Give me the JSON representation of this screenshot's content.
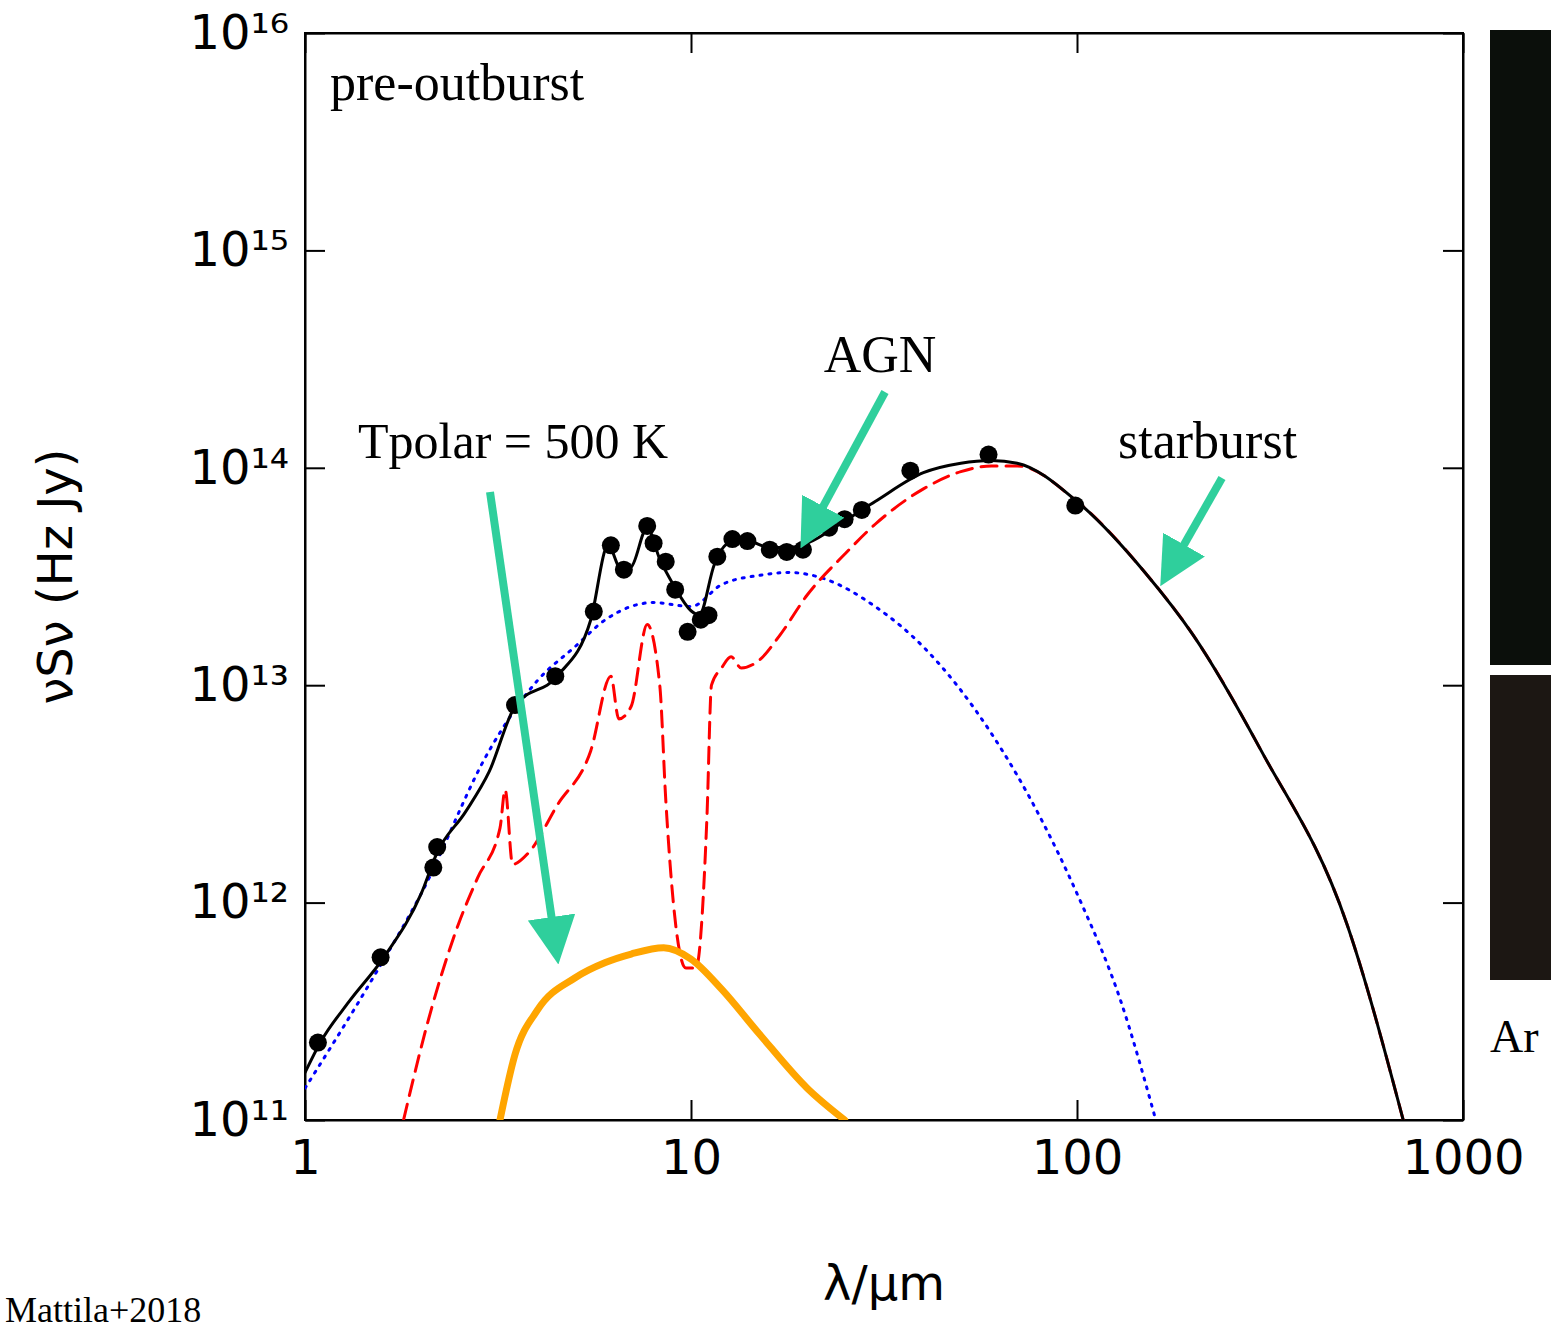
{
  "chart_data": {
    "type": "line",
    "log": true,
    "x_label": "λ/μm",
    "y_label": "νSν (Hz Jy)",
    "xlim": [
      1,
      1000
    ],
    "ylim": [
      100000000000.0,
      1e+16
    ],
    "xticks": [
      1,
      10,
      100,
      1000
    ],
    "yticks": [
      {
        "value": 100000000000.0,
        "label": "10¹¹"
      },
      {
        "value": 1000000000000.0,
        "label": "10¹²"
      },
      {
        "value": 10000000000000.0,
        "label": "10¹³"
      },
      {
        "value": 100000000000000.0,
        "label": "10¹⁴"
      },
      {
        "value": 1000000000000000.0,
        "label": "10¹⁵"
      },
      {
        "value": 1e+16,
        "label": "10¹⁶"
      }
    ],
    "annotations": [
      {
        "text": "pre-outburst"
      },
      {
        "text": "Mattila+2018"
      },
      {
        "text": "Ar"
      }
    ],
    "series": [
      {
        "type": "scatter",
        "marker": "circle",
        "color": "#000000",
        "x": [
          1.08,
          1.57,
          2.15,
          2.2,
          3.5,
          4.45,
          5.6,
          6.2,
          6.7,
          7.7,
          8.0,
          8.6,
          9.1,
          9.8,
          10.6,
          11.1,
          11.7,
          12.8,
          14,
          16,
          17.7,
          19.5,
          22.8,
          25,
          27.7,
          37,
          59,
          99
        ],
        "values": [
          227000000000.0,
          560000000000.0,
          1450000000000.0,
          1800000000000.0,
          8100000000000.0,
          11000000000000.0,
          21800000000000.0,
          44000000000000.0,
          34000000000000.0,
          54000000000000.0,
          45000000000000.0,
          37000000000000.0,
          27500000000000.0,
          17600000000000.0,
          20000000000000.0,
          21000000000000.0,
          39000000000000.0,
          47000000000000.0,
          46000000000000.0,
          42000000000000.0,
          41000000000000.0,
          42000000000000.0,
          53000000000000.0,
          58000000000000.0,
          64000000000000.0,
          97000000000000.0,
          115000000000000.0,
          67000000000000.0
        ]
      },
      {
        "type": "line",
        "line_style": "solid",
        "color": "#000000",
        "x": [
          1,
          1.1,
          1.3,
          1.6,
          2,
          2.2,
          2.6,
          3,
          3.5,
          4.5,
          5.5,
          6.1,
          6.6,
          7,
          7.7,
          8.3,
          9,
          10,
          10.5,
          11.5,
          12.5,
          14,
          16,
          18,
          20,
          25,
          30,
          40,
          50,
          60,
          70,
          100,
          150,
          200,
          300,
          500,
          700
        ],
        "values": [
          165000000000.0,
          230000000000.0,
          350000000000.0,
          560000000000.0,
          1100000000000.0,
          1700000000000.0,
          2600000000000.0,
          4000000000000.0,
          8000000000000.0,
          11000000000000.0,
          20000000000000.0,
          44000000000000.0,
          34000000000000.0,
          35000000000000.0,
          53000000000000.0,
          38000000000000.0,
          29000000000000.0,
          22000000000000.0,
          21000000000000.0,
          36000000000000.0,
          45000000000000.0,
          46000000000000.0,
          43000000000000.0,
          43000000000000.0,
          45000000000000.0,
          57000000000000.0,
          70000000000000.0,
          95000000000000.0,
          105000000000000.0,
          108000000000000.0,
          105000000000000.0,
          70000000000000.0,
          33000000000000.0,
          17000000000000.0,
          5000000000000.0,
          800000000000.0,
          100000000000.0
        ]
      },
      {
        "name": "AGN",
        "type": "line",
        "line_style": "dotted",
        "color": "#0000ff",
        "x": [
          1,
          1.5,
          2,
          3,
          4,
          5,
          6,
          8,
          10,
          12,
          15,
          18,
          22,
          30,
          40,
          60,
          80,
          100,
          130,
          160
        ],
        "values": [
          140000000000.0,
          450000000000.0,
          1100000000000.0,
          5000000000000.0,
          10500000000000.0,
          15000000000000.0,
          20000000000000.0,
          24000000000000.0,
          23000000000000.0,
          29000000000000.0,
          32000000000000.0,
          33000000000000.0,
          31000000000000.0,
          23000000000000.0,
          15000000000000.0,
          6000000000000.0,
          2500000000000.0,
          1100000000000.0,
          350000000000.0,
          100000000000.0
        ]
      },
      {
        "name": "starburst",
        "type": "line",
        "line_style": "dashed",
        "color": "#ff0000",
        "x": [
          1.8,
          2.1,
          2.5,
          2.8,
          3.2,
          3.3,
          3.45,
          3.8,
          4.5,
          5.5,
          6.2,
          6.5,
          7,
          7.7,
          8.3,
          8.6,
          9.0,
          9.7,
          10.3,
          11,
          11.3,
          12,
          12.7,
          13.5,
          15,
          17,
          20,
          25,
          30,
          40,
          50,
          60,
          70,
          100,
          150,
          200,
          300,
          500,
          700
        ],
        "values": [
          100000000000.0,
          300000000000.0,
          800000000000.0,
          1300000000000.0,
          2200000000000.0,
          3300000000000.0,
          1500000000000.0,
          1700000000000.0,
          2800000000000.0,
          5000000000000.0,
          11000000000000.0,
          7000000000000.0,
          8000000000000.0,
          19000000000000.0,
          10000000000000.0,
          3000000000000.0,
          1000000000000.0,
          500000000000.0,
          500000000000.0,
          2500000000000.0,
          10000000000000.0,
          12000000000000.0,
          13500000000000.0,
          12000000000000.0,
          13000000000000.0,
          17000000000000.0,
          26000000000000.0,
          40000000000000.0,
          55000000000000.0,
          80000000000000.0,
          96000000000000.0,
          102000000000000.0,
          102000000000000.0,
          70000000000000.0,
          33000000000000.0,
          17000000000000.0,
          5000000000000.0,
          800000000000.0,
          100000000000.0
        ]
      },
      {
        "name": "Tpolar = 500 K",
        "type": "line",
        "line_style": "solid",
        "color": "#ffa500",
        "x": [
          3.2,
          3.5,
          4,
          5,
          6,
          7,
          8.5,
          10,
          12,
          15,
          20,
          25
        ],
        "values": [
          100000000000.0,
          200000000000.0,
          320000000000.0,
          450000000000.0,
          530000000000.0,
          580000000000.0,
          620000000000.0,
          550000000000.0,
          400000000000.0,
          250000000000.0,
          140000000000.0,
          100000000000.0
        ]
      }
    ]
  }
}
